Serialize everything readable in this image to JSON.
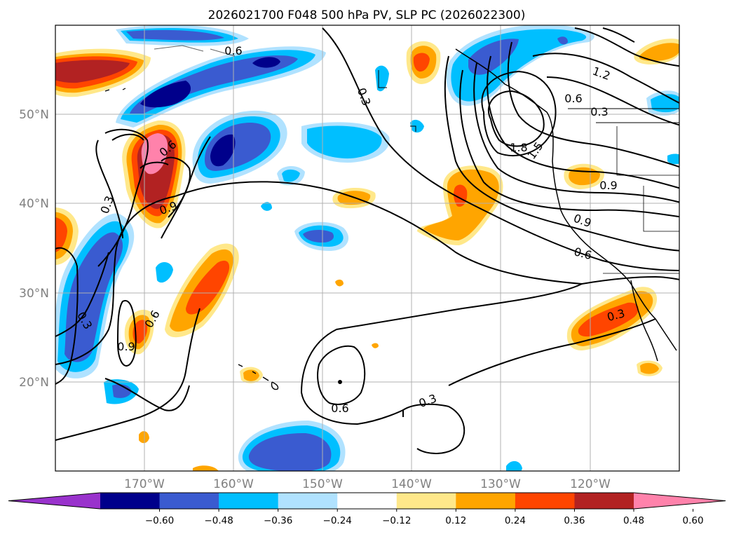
{
  "title": "2026021700 F048 500 hPa PV, SLP PC (2026022300)",
  "map": {
    "lat_labels": [
      "50°N",
      "40°N",
      "30°N",
      "20°N"
    ],
    "lon_labels": [
      "170°W",
      "160°W",
      "150°W",
      "140°W",
      "130°W",
      "120°W"
    ],
    "grid": true,
    "lon_range": [
      -180,
      -110
    ],
    "lat_range": [
      10,
      60
    ]
  },
  "colorbar": {
    "ticks": [
      "−0.60",
      "−0.48",
      "−0.36",
      "−0.24",
      "−0.12",
      "0.12",
      "0.24",
      "0.36",
      "0.48",
      "0.60"
    ],
    "colors": [
      "#9932cc",
      "#00008b",
      "#3a5bd0",
      "#00bfff",
      "#b0e2ff",
      "#ffffff",
      "#ffe88a",
      "#ffa500",
      "#ff4500",
      "#b22222",
      "#ff82ab"
    ],
    "extend": "both"
  },
  "contour_labels": {
    "c1": "0.6",
    "c2": "0.3",
    "c3": "1.2",
    "c4": "0.6",
    "c5": "0.3",
    "c6": "1.8",
    "c7": "1.5",
    "c8": "0.9",
    "c9": "0.9",
    "c10": "0.6",
    "c11": "0.6",
    "c12": "0.9",
    "c13": "0.3",
    "c14": "0.3",
    "c15": "0.6",
    "c16": "0.9",
    "c17": "0.3",
    "c18": "0.6",
    "c19": "0.3"
  }
}
